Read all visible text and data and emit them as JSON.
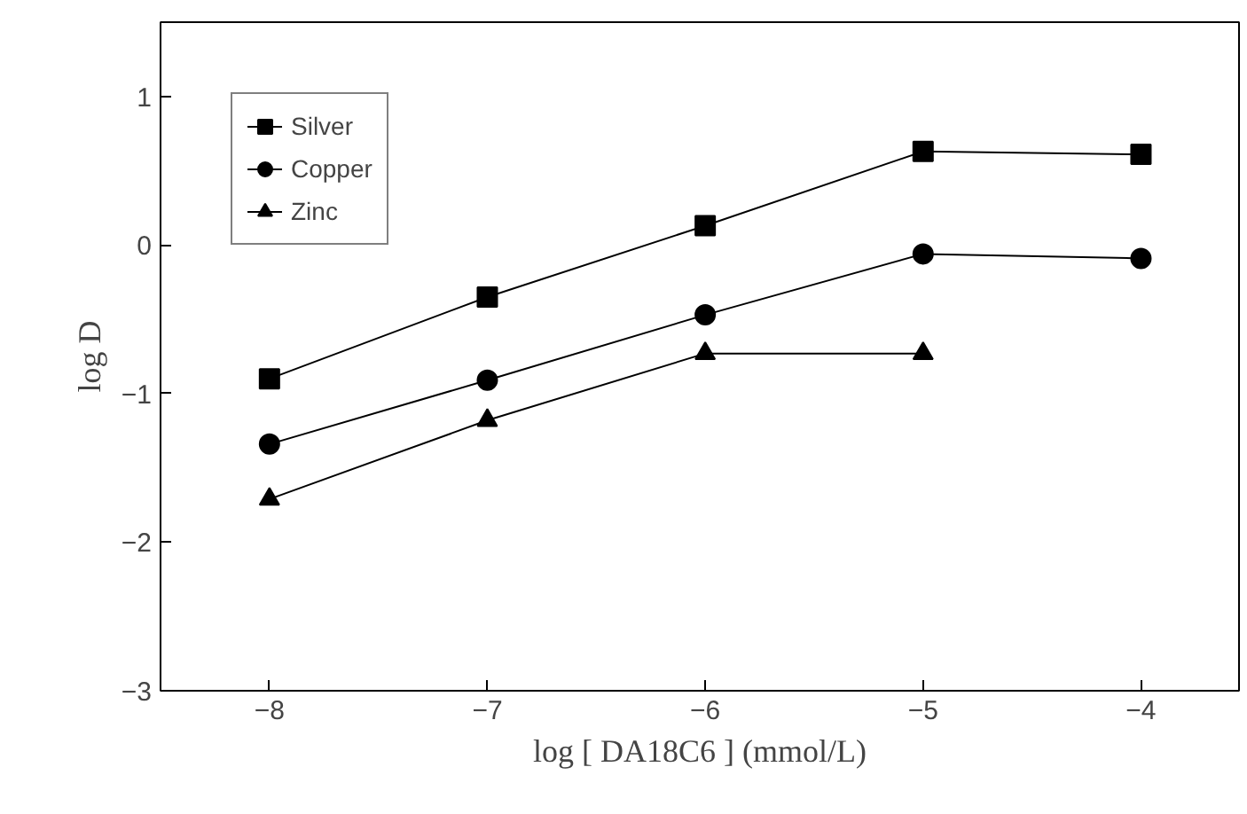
{
  "chart_data": {
    "type": "line",
    "xlabel": "log [ DA18C6 ] (mmol/L)",
    "ylabel": "log D",
    "x": [
      -8,
      -7,
      -6,
      -5,
      -4
    ],
    "series": [
      {
        "name": "Silver",
        "color": "#000000",
        "marker": "square",
        "values": [
          -0.9,
          -0.35,
          0.13,
          0.63,
          0.61
        ]
      },
      {
        "name": "Copper",
        "color": "#000000",
        "marker": "circle",
        "values": [
          -1.34,
          -0.91,
          -0.47,
          -0.06,
          -0.09
        ]
      },
      {
        "name": "Zinc",
        "color": "#000000",
        "marker": "triangle",
        "values": [
          -1.71,
          -1.18,
          -0.73,
          -0.73,
          null
        ]
      }
    ],
    "xlim": [
      -8.5,
      -3.55
    ],
    "xticks": [
      -8,
      -7,
      -6,
      -5,
      -4
    ],
    "ylim": [
      -3,
      1.5
    ],
    "yticks": [
      -3,
      -2,
      -1,
      0,
      1
    ],
    "grid": false,
    "legend": "top left",
    "line_style": "solid"
  }
}
